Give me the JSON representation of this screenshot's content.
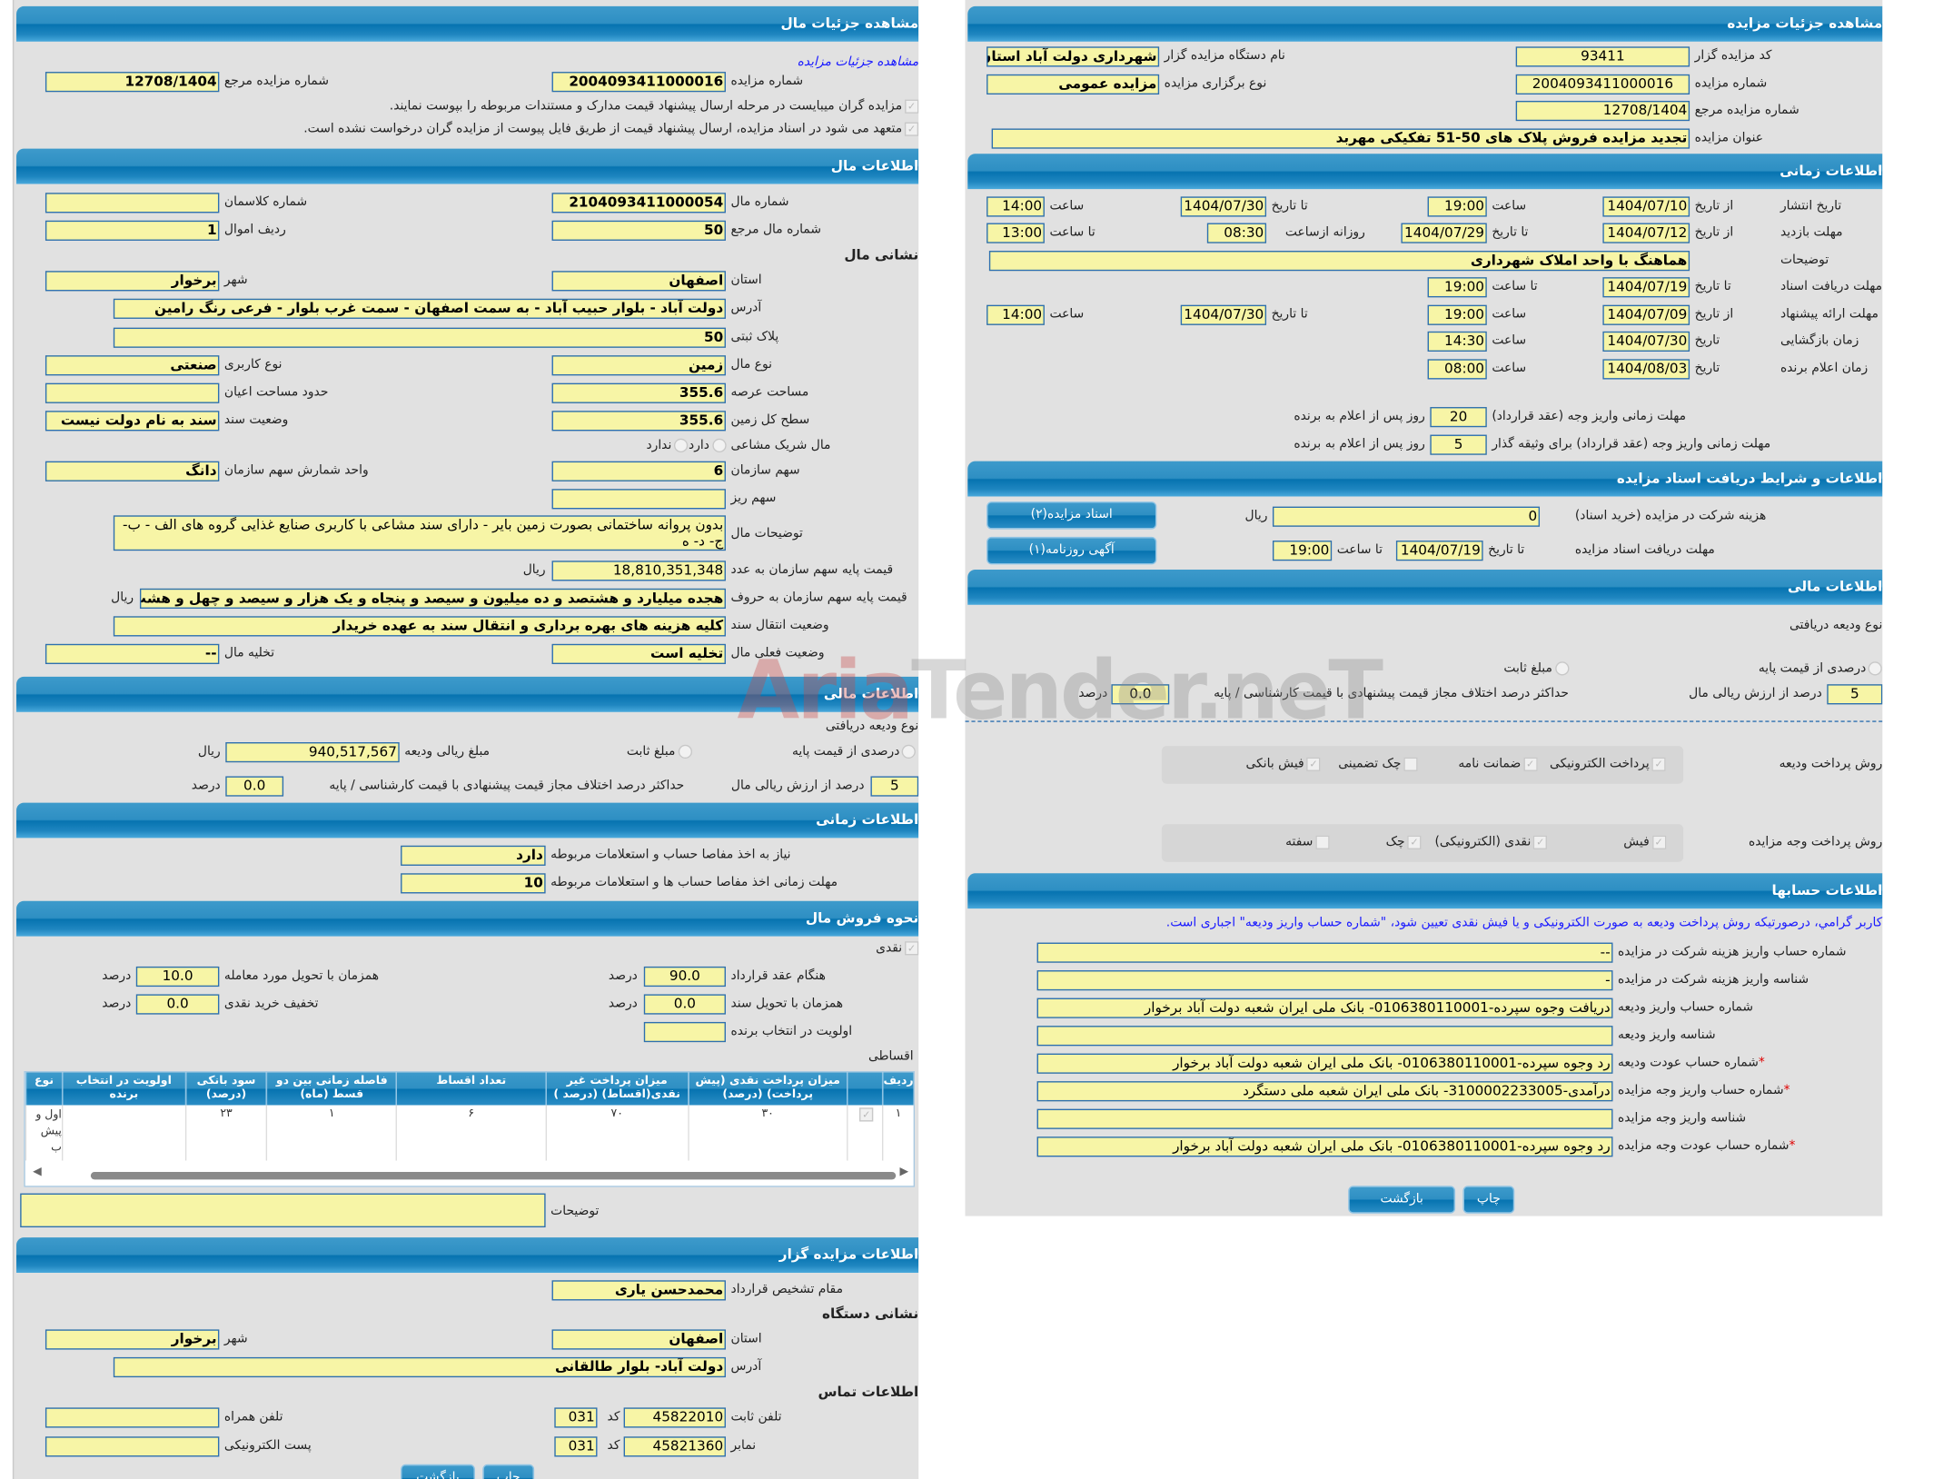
{
  "colors": {
    "header_blue": "#0673b0",
    "field_yellow": "#f7f5a6",
    "panel_gray": "#e1e1e1",
    "link_blue": "#1a1aff",
    "required_red": "#e00000"
  },
  "watermark": "AriaTender.neT",
  "left": {
    "title": "مشاهده جزئیات مال",
    "link": "مشاهده جزئیات مزایده",
    "ref_no_label": "شماره مزایده مرجع",
    "ref_no": "12708/1404",
    "auction_no_label": "شماره مزایده",
    "auction_no": "2004093411000016",
    "notes": [
      "مزایده گران میبایست در مرحله ارسال پیشنهاد قیمت مدارک و مستندات مربوطه را بپوست نمایند.",
      "متعهد می شود در اسناد مزایده، ارسال پیشنهاد قیمت از طریق فایل پیوست از مزایده گران درخواست نشده است."
    ],
    "info_title": "اطلاعات مال",
    "class_no_label": "شماره کلاسمان",
    "class_no": "",
    "asset_no_label": "شماره مال",
    "asset_no": "2104093411000054",
    "row_no_label": "ردیف اموال",
    "row_no": "1",
    "asset_ref_no_label": "شماره مال مرجع",
    "asset_ref_no": "50",
    "address_title": "نشانی مال",
    "city_label": "شهر",
    "city": "برخوار",
    "province_label": "استان",
    "province": "اصفهان",
    "address_label": "آدرس",
    "address": "دولت آباد - بلوار حبیب آباد - به سمت اصفهان - سمت غرب بلوار - فرعی رنگ رامین",
    "plak_label": "پلاک ثبتی",
    "plak": "50",
    "usage_label": "نوع کاربری",
    "usage": "صنعتی",
    "asset_type_label": "نوع مال",
    "asset_type": "زمین",
    "building_area_label": "حدود مساحت اعیان",
    "building_area": "",
    "land_area_label": "مساحت عرصه",
    "land_area": "355.6",
    "deed_status_label": "وضعیت سند",
    "deed_status": "سند به نام دولت نیست",
    "total_land_label": "سطح کل زمین",
    "total_land": "355.6",
    "partner_label": "مال شریک مشاعی",
    "partner_yes": "دارد",
    "partner_no": "ندارد",
    "share_unit_label": "واحد شمارش سهم سازمان",
    "share_unit": "دانگ",
    "org_share_label": "سهم سازمان",
    "org_share": "6",
    "small_share_label": "سهم ریز",
    "small_share": "",
    "description_label": "توضیحات مال",
    "description": "بدون پروانه ساختمانی بصورت زمین بایر - دارای سند مشاعی با کاربری صنایع غذایی گروه های الف - ب- ج- د- ه",
    "base_price_label": "قیمت پایه سهم سازمان به عدد",
    "base_price": "18,810,351,348",
    "base_price_words_label": "قیمت پایه سهم سازمان به حروف",
    "base_price_words": "هجده میلیارد و هشتصد و ده میلیون و سیصد و پنجاه و یک هزار و سیصد و چهل و هشت",
    "currency": "ریال",
    "transfer_label": "وضعیت انتقال سند",
    "transfer": "کلیه هزینه های بهره برداری و انتقال سند به عهده خریدار",
    "evacuation_label": "تخلیه مال",
    "evacuation": "--",
    "current_status_label": "وضعیت فعلی مال",
    "current_status": "تخلیه است",
    "financial": {
      "title": "اطلاعات مالی",
      "deposit_type_label": "نوع ودیعه دریافتی",
      "opt_percent": "درصدی از قیمت پایه",
      "opt_fixed": "مبلغ ثابت",
      "deposit_amount_label": "مبلغ ریالی ودیعه",
      "deposit_amount": "940,517,567",
      "pct_label": "درصد از ارزش ریالی مال",
      "pct": "5",
      "max_diff_label": "حداکثر درصد اختلاف مجاز قیمت پیشنهادی با قیمت کارشناسی / پایه",
      "max_diff": "0.0",
      "percent": "درصد"
    },
    "time": {
      "title": "اطلاعات زمانی",
      "clearance_needed_label": "نیاز به اخذ مفاصا حساب و استعلامات مربوطه",
      "clearance_needed": "دارد",
      "clearance_deadline_label": "مهلت زمانی اخذ مفاصا حساب ها و استعلامات مربوطه",
      "clearance_deadline": "10"
    },
    "sales": {
      "title": "نحوه فروش مال",
      "cash_label": "نقدی",
      "percent": "درصد",
      "at_contract_label": "هنگام عقد قرارداد",
      "at_contract": "90.0",
      "at_delivery_label": "همزمان با تحویل مورد معامله",
      "at_delivery": "10.0",
      "at_deed_label": "همزمان با تحویل سند",
      "at_deed": "0.0",
      "cash_discount_label": "تخفیف خرید نقدی",
      "cash_discount": "0.0",
      "winner_priority_label": "اولویت در انتخاب برنده",
      "winner_priority": "",
      "installments_label": "اقساطی",
      "table": {
        "headers": [
          "ردیف",
          "",
          "میزان پرداخت نقدی (پیش پرداخت) (درصد)",
          "میزان پرداخت غیر نقدی(اقساط) (درصد )",
          "تعداد اقساط",
          "فاصله زمانی بین دو قسط (ماه)",
          "سود بانکی (درصد)",
          "اولویت در انتخاب برنده",
          "نوع"
        ],
        "rows": [
          [
            "۱",
            "",
            "۳۰",
            "۷۰",
            "۶",
            "۱",
            "۲۳",
            "",
            "اول و پیش ب"
          ]
        ]
      },
      "notes_label": "توضیحات",
      "notes": ""
    },
    "auctioneer": {
      "title": "اطلاعات مزایده گزار",
      "authority_label": "مقام تشخیص قرارداد",
      "authority": "محمدحسن یاری",
      "device_address_title": "نشانی دستگاه",
      "city_label": "شهر",
      "city": "برخوار",
      "province_label": "استان",
      "province": "اصفهان",
      "address_label": "آدرس",
      "address": "دولت آباد- بلوار طالقانی",
      "contact_title": "اطلاعات تماس",
      "mobile_label": "تلفن همراه",
      "mobile": "",
      "phone_label": "تلفن ثابت",
      "phone": "45822010",
      "code_label": "کد",
      "phone_code": "031",
      "email_label": "پست الکترونیکی",
      "email": "",
      "fax_label": "نمابر",
      "fax": "45821360",
      "fax_code": "031"
    },
    "back": "بازگشت",
    "print": "چاپ"
  },
  "right": {
    "title": "مشاهده جزئیات مزایده",
    "code_label": "کد مزایده گزار",
    "code": "93411",
    "org_name_label": "نام دستگاه مزایده گزار",
    "org_name": "شهرداری دولت آباد استان ا",
    "auction_no_label": "شماره مزایده",
    "auction_no": "2004093411000016",
    "type_label": "نوع برگزاری مزایده",
    "type": "مزایده عمومی",
    "ref_no_label": "شماره مزایده مرجع",
    "ref_no": "12708/1404",
    "subject_label": "عنوان مزایده",
    "subject": "تجدید مزایده فروش پلاک های 50-51 تفکیکی مهربد",
    "time": {
      "title": "اطلاعات زمانی",
      "from_date": "از تاریخ",
      "to_date": "تا تاریخ",
      "date": "تاریخ",
      "hour": "ساعت",
      "to_hour": "تا ساعت",
      "daily_from": "روزانه ازساعت",
      "publish_label": "تاریخ انتشار",
      "publish_from": "1404/07/10",
      "publish_from_time": "19:00",
      "publish_to": "1404/07/30",
      "publish_to_time": "14:00",
      "visit_label": "مهلت بازدید",
      "visit_from": "1404/07/12",
      "visit_to": "1404/07/29",
      "visit_daily_from": "08:30",
      "visit_daily_to": "13:00",
      "desc_label": "توضیحات",
      "desc": "هماهنگ با واحد املاک شهرداری",
      "docs_label": "مهلت دریافت اسناد",
      "docs_to": "1404/07/19",
      "docs_to_time": "19:00",
      "offer_label": "مهلت ارائه پیشنهاد",
      "offer_from": "1404/07/09",
      "offer_from_time": "19:00",
      "offer_to": "1404/07/30",
      "offer_to_time": "14:00",
      "opening_label": "زمان بازگشایی",
      "opening_date": "1404/07/30",
      "opening_time": "14:30",
      "winner_label": "زمان اعلام برنده",
      "winner_date": "1404/08/03",
      "winner_time": "08:00",
      "pay_label": "مهلت زمانی واریز وجه (عقد قرارداد)",
      "pay_days": "20",
      "pay_bail_label": "مهلت زمانی واریز وجه (عقد قرارداد) برای وثیقه گذار",
      "pay_bail_days": "5",
      "days_label": "روز پس از اعلام به برنده"
    },
    "docs": {
      "title": "اطلاعات و شرایط دریافت اسناد مزایده",
      "docs_button": "اسناد مزایده(۲)",
      "ad_button": "آگهی روزنامه(۱)",
      "fee_label": "هزینه شرکت در مزایده (خرید اسناد)",
      "fee": "0",
      "currency": "ریال",
      "deadline_label": "مهلت دریافت اسناد مزایده",
      "to_date": "تا تاریخ",
      "deadline_date": "1404/07/19",
      "to_hour": "تا ساعت",
      "deadline_time": "19:00"
    },
    "financial": {
      "title": "اطلاعات مالی",
      "deposit_type_label": "نوع ودیعه دریافتی",
      "opt_percent": "درصدی از قیمت پایه",
      "opt_fixed": "مبلغ ثابت",
      "pct_label": "درصد از ارزش ریالی مال",
      "pct": "5",
      "max_diff_label": "حداکثر درصد اختلاف مجاز قیمت پیشنهادی با قیمت کارشناسی / پایه",
      "max_diff": "0.0",
      "percent": "درصد",
      "deposit_method_label": "روش پرداخت ودیعه",
      "deposit_methods": [
        {
          "label": "پرداخت الکترونیکی",
          "checked": true
        },
        {
          "label": "ضمانت نامه",
          "checked": true
        },
        {
          "label": "چک تضمینی",
          "checked": false
        },
        {
          "label": "فیش بانکی",
          "checked": true
        }
      ],
      "payment_method_label": "روش پرداخت وجه مزایده",
      "payment_methods": [
        {
          "label": "فیش",
          "checked": true
        },
        {
          "label": "نقدی (الکترونیکی)",
          "checked": true
        },
        {
          "label": "چک",
          "checked": true
        },
        {
          "label": "سفته",
          "checked": false
        }
      ]
    },
    "accounts": {
      "title": "اطلاعات حسابها",
      "notice": "کاربر گرامي، درصورتيكه روش پرداخت وديعه به صورت الکترونيکی و يا فيش نقدی تعيين شود، \"شماره حساب واريز وديعه\" اجباری است.",
      "rows": [
        {
          "label": "شماره حساب واریز هزینه شرکت در مزایده",
          "value": "--",
          "required": false
        },
        {
          "label": "شناسه واریز هزینه شرکت در مزایده",
          "value": "-",
          "required": false
        },
        {
          "label": "شماره حساب واریز ودیعه",
          "value": "دریافت وجوه سپرده-0106380110001- بانک ملی ایران شعبه دولت آباد برخوار",
          "required": false
        },
        {
          "label": "شناسه واریز ودیعه",
          "value": "",
          "required": false
        },
        {
          "label": "شماره حساب عودت ودیعه",
          "value": "رد وجوه سپرده-0106380110001- بانک ملی ایران شعبه دولت آباد برخوار",
          "required": true
        },
        {
          "label": "شماره حساب واریز وجه مزایده",
          "value": "درآمدی-3100002233005- بانک ملی ایران شعبه ملی دستگرد",
          "required": true
        },
        {
          "label": "شناسه واریز وجه مزایده",
          "value": "",
          "required": false
        },
        {
          "label": "شماره حساب عودت وجه مزایده",
          "value": "رد وجوه سپرده-0106380110001- بانک ملی ایران شعبه دولت آباد برخوار",
          "required": true
        }
      ]
    },
    "back": "بازگشت",
    "print": "چاپ"
  }
}
